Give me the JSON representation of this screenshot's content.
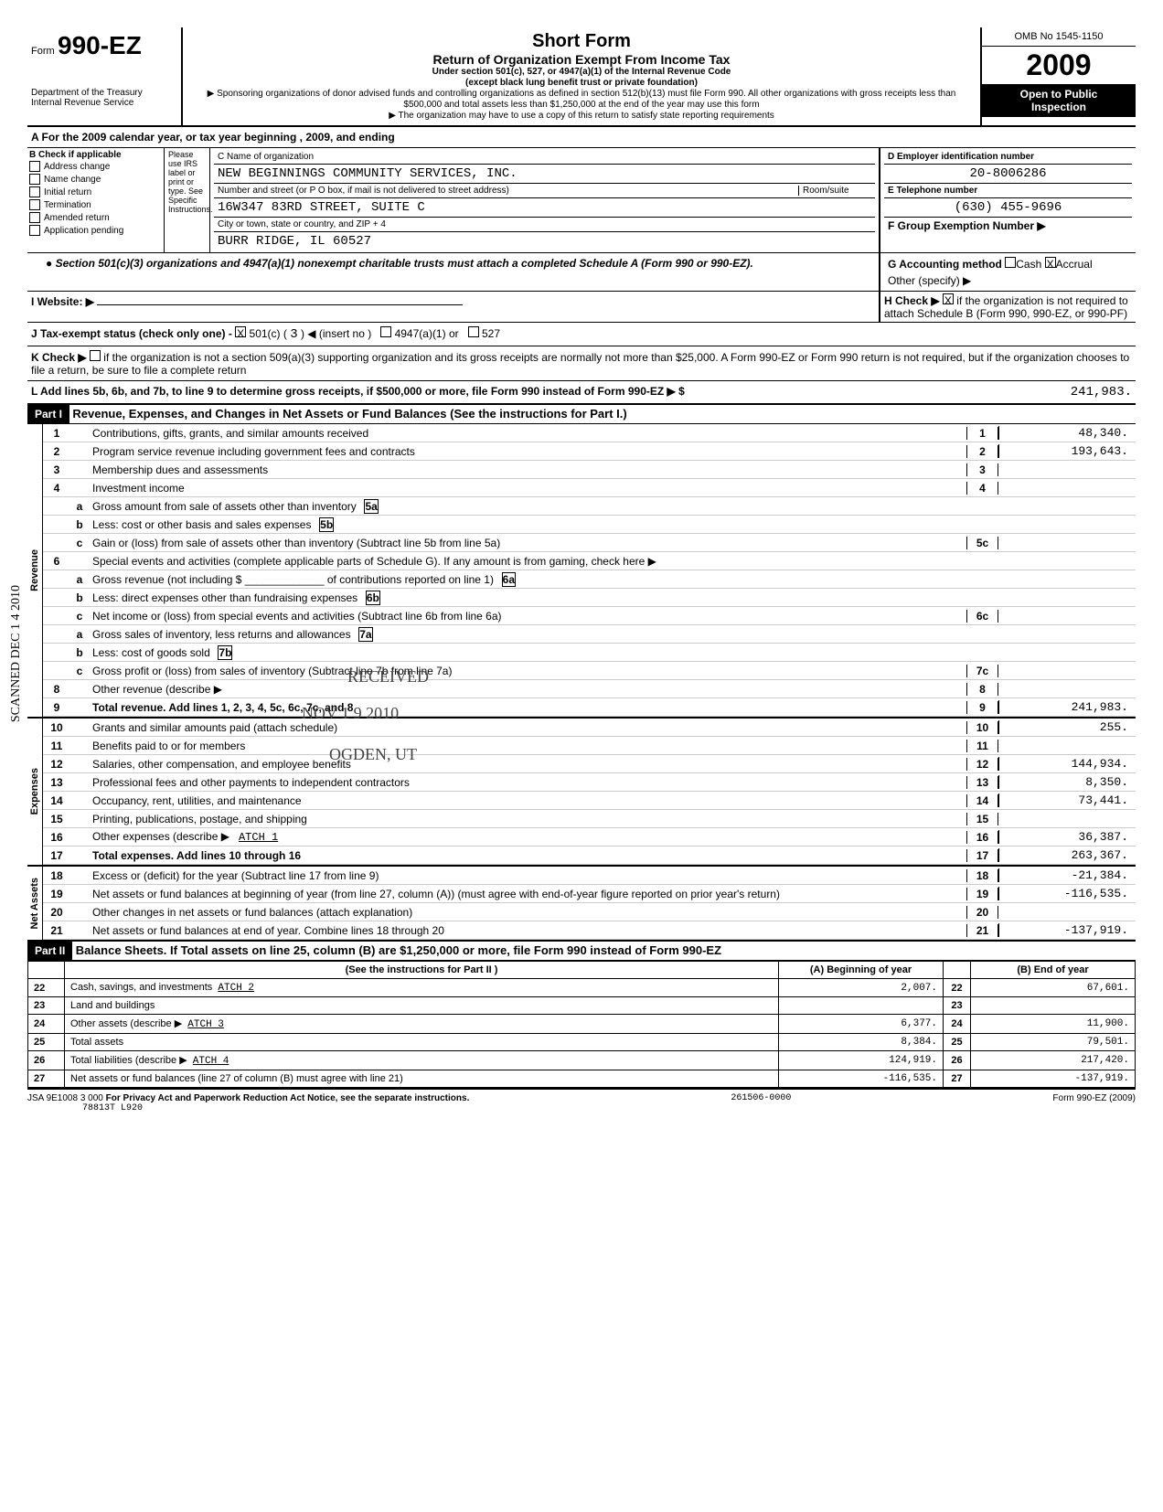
{
  "header": {
    "form_prefix": "Form",
    "form_number": "990-EZ",
    "dept": "Department of the Treasury",
    "irs": "Internal Revenue Service",
    "title": "Short Form",
    "subtitle": "Return of Organization Exempt From Income Tax",
    "code_line": "Under section 501(c), 527, or 4947(a)(1) of the Internal Revenue Code",
    "exception": "(except black lung benefit trust or private foundation)",
    "desc1": "▶ Sponsoring organizations of donor advised funds and controlling organizations as defined in section 512(b)(13) must file Form 990. All other organizations with gross receipts less than $500,000 and total assets less than $1,250,000 at the end of the year may use this form",
    "desc2": "▶ The organization may have to use a copy of this return to satisfy state reporting requirements",
    "omb": "OMB No 1545-1150",
    "year_prefix": "20",
    "year_suffix": "09",
    "open": "Open to Public",
    "inspection": "Inspection"
  },
  "section_a": "A  For the 2009 calendar year, or tax year beginning                                          , 2009, and ending",
  "section_b": {
    "title": "B Check if applicable",
    "instr": "Please use IRS label or print or type. See Specific Instructions.",
    "items": [
      "Address change",
      "Name change",
      "Initial return",
      "Termination",
      "Amended return",
      "Application pending"
    ]
  },
  "org": {
    "name_label": "C Name of organization",
    "name": "NEW BEGINNINGS COMMUNITY SERVICES, INC.",
    "addr_label": "Number and street (or P O box, if mail is not delivered to street address)",
    "room_label": "Room/suite",
    "address": "16W347 83RD STREET, SUITE C",
    "city_label": "City or town, state or country, and ZIP + 4",
    "city": "BURR RIDGE, IL 60527"
  },
  "right": {
    "ein_label": "D  Employer identification number",
    "ein": "20-8006286",
    "tel_label": "E  Telephone number",
    "tel": "(630) 455-9696",
    "group_label": "F Group Exemption Number  ▶",
    "accounting": "G  Accounting method",
    "cash": "Cash",
    "accrual": "Accrual",
    "accrual_checked": "X",
    "other": "Other (specify) ▶",
    "h_check": "H  Check ▶",
    "h_x": "X",
    "h_text": "if the organization is not required to attach Schedule B (Form 990, 990-EZ, or 990-PF)"
  },
  "bullets": {
    "sched_a": "● Section 501(c)(3) organizations and 4947(a)(1) nonexempt charitable trusts must attach a completed Schedule A (Form 990 or 990-EZ).",
    "website": "I   Website: ▶",
    "j": "J   Tax-exempt status (check only one) -",
    "j_501c": "501(c) (",
    "j_num": "3",
    "j_insert": ") ◀ (insert no )",
    "j_4947": "4947(a)(1) or",
    "j_527": "527",
    "j_x": "X",
    "k": "K  Check ▶",
    "k_text": "if the organization is not a section 509(a)(3) supporting organization and its gross receipts are normally not more than $25,000. A Form 990-EZ or Form 990 return is not required, but if the organization chooses to file a return, be sure to file a complete return",
    "l": "L  Add lines 5b, 6b, and 7b, to line 9 to determine gross receipts, if $500,000 or more, file Form 990 instead of Form 990-EZ    ▶  $",
    "l_val": "241,983."
  },
  "part1": {
    "label": "Part I",
    "title": "Revenue, Expenses, and Changes in Net Assets or Fund Balances (See the instructions for Part I.)"
  },
  "revenue_label": "Revenue",
  "expenses_label": "Expenses",
  "netassets_label": "Net Assets",
  "lines": {
    "1": {
      "desc": "Contributions, gifts, grants, and similar amounts received",
      "val": "48,340."
    },
    "2": {
      "desc": "Program service revenue including government fees and contracts",
      "val": "193,643."
    },
    "3": {
      "desc": "Membership dues and assessments",
      "val": ""
    },
    "4": {
      "desc": "Investment income",
      "val": ""
    },
    "5a": {
      "desc": "Gross amount from sale of assets other than inventory"
    },
    "5b": {
      "desc": "Less: cost or other basis and sales expenses"
    },
    "5c": {
      "desc": "Gain or (loss) from sale of assets other than inventory (Subtract line 5b from line 5a)",
      "val": ""
    },
    "6": {
      "desc": "Special events and activities (complete applicable parts of Schedule G). If any amount is from gaming, check here    ▶"
    },
    "6a": {
      "desc": "Gross revenue (not including $ _____________ of contributions reported on line 1)"
    },
    "6b": {
      "desc": "Less: direct expenses other than fundraising expenses"
    },
    "6c": {
      "desc": "Net income or (loss) from special events and activities (Subtract line 6b from line 6a)",
      "val": ""
    },
    "7a": {
      "desc": "Gross sales of inventory, less returns and allowances"
    },
    "7b": {
      "desc": "Less: cost of goods sold"
    },
    "7c": {
      "desc": "Gross profit or (loss) from sales of inventory (Subtract line 7b from line 7a)",
      "val": ""
    },
    "8": {
      "desc": "Other revenue (describe ▶",
      "val": ""
    },
    "9": {
      "desc": "Total revenue. Add lines 1, 2, 3, 4, 5c, 6c, 7c, and 8",
      "val": "241,983."
    },
    "10": {
      "desc": "Grants and similar amounts paid (attach schedule)",
      "val": "255."
    },
    "11": {
      "desc": "Benefits paid to or for members",
      "val": ""
    },
    "12": {
      "desc": "Salaries, other compensation, and employee benefits",
      "val": "144,934."
    },
    "13": {
      "desc": "Professional fees and other payments to independent contractors",
      "val": "8,350."
    },
    "14": {
      "desc": "Occupancy, rent, utilities, and maintenance",
      "val": "73,441."
    },
    "15": {
      "desc": "Printing, publications, postage, and shipping",
      "val": ""
    },
    "16": {
      "desc": "Other expenses (describe ▶",
      "atch": "ATCH 1",
      "val": "36,387."
    },
    "17": {
      "desc": "Total expenses. Add lines 10 through 16",
      "val": "263,367."
    },
    "18": {
      "desc": "Excess or (deficit) for the year (Subtract line 17 from line 9)",
      "val": "-21,384."
    },
    "19": {
      "desc": "Net assets or fund balances at beginning of year (from line 27, column (A)) (must agree with end-of-year figure reported on prior year's return)",
      "val": "-116,535."
    },
    "20": {
      "desc": "Other changes in net assets or fund balances (attach explanation)",
      "val": ""
    },
    "21": {
      "desc": "Net assets or fund balances at end of year. Combine lines 18 through 20",
      "val": "-137,919."
    }
  },
  "part2": {
    "label": "Part II",
    "title": "Balance Sheets. If Total assets on line 25, column (B) are $1,250,000 or more, file Form 990 instead of Form 990-EZ",
    "instr": "(See the instructions for Part II )",
    "col_a": "(A) Beginning of year",
    "col_b": "(B) End of year"
  },
  "balance": [
    {
      "num": "22",
      "desc": "Cash, savings, and investments",
      "atch": "ATCH 2",
      "a": "2,007.",
      "b": "67,601."
    },
    {
      "num": "23",
      "desc": "Land and buildings",
      "a": "",
      "b": ""
    },
    {
      "num": "24",
      "desc": "Other assets (describe ▶",
      "atch": "ATCH 3",
      "a": "6,377.",
      "b": "11,900."
    },
    {
      "num": "25",
      "desc": "Total assets",
      "a": "8,384.",
      "b": "79,501."
    },
    {
      "num": "26",
      "desc": "Total liabilities (describe ▶",
      "atch": "ATCH 4",
      "a": "124,919.",
      "b": "217,420."
    },
    {
      "num": "27",
      "desc": "Net assets or fund balances (line 27 of column (B) must agree with line 21)",
      "a": "-116,535.",
      "b": "-137,919."
    }
  ],
  "footer": {
    "privacy": "For Privacy Act and Paperwork Reduction Act Notice, see the separate instructions.",
    "jsa": "JSA 9E1008 3 000",
    "code": "78813T L920",
    "acct": "261506-0000",
    "form": "Form 990-EZ (2009)"
  },
  "stamps": {
    "received": "RECEIVED",
    "date": "NOV 1 9 2010",
    "ogden": "OGDEN, UT",
    "side": "SCANNED DEC 1 4 2010"
  }
}
